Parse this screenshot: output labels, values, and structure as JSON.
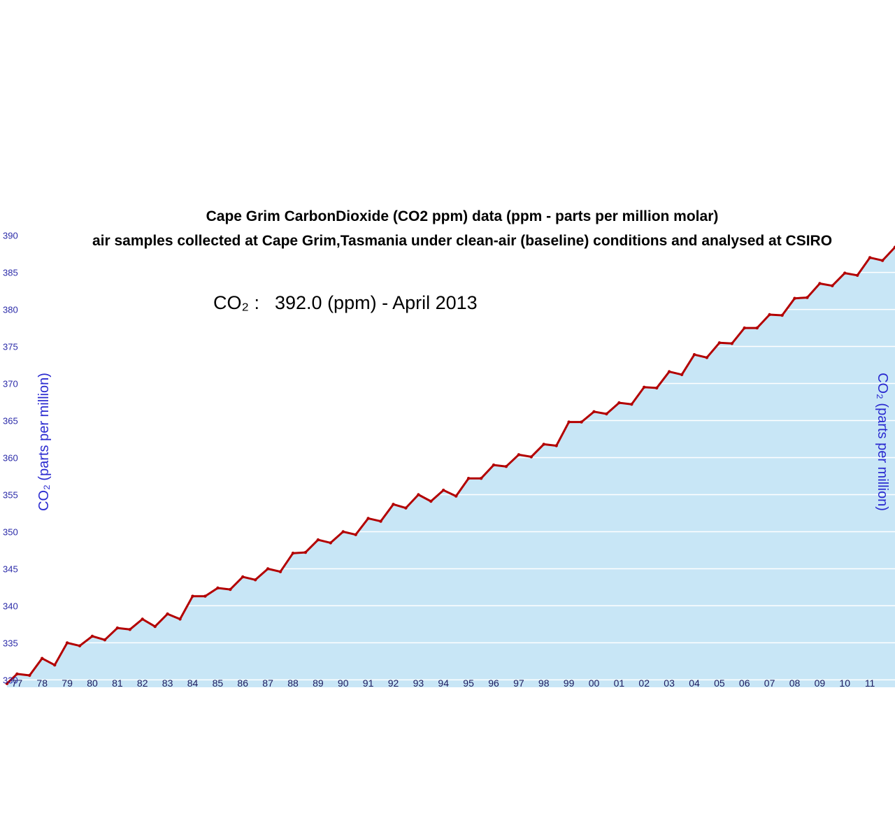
{
  "chart_data": {
    "type": "area",
    "title": "Cape Grim CarbonDioxide (CO2 ppm) data (ppm - parts per million molar)",
    "subtitle": "air samples collected at Cape Grim,Tasmania under clean-air (baseline) conditions and analysed at CSIRO",
    "annotation_label": "CO₂ :",
    "annotation_value": "392.0 (ppm) - April 2013",
    "ylabel_left": "CO₂ (parts per million)",
    "ylabel_right": "CO₂ (parts per million)",
    "ylim": [
      329,
      391
    ],
    "xlim": [
      1976.6,
      2012.0
    ],
    "y_ticks": [
      "330",
      "335",
      "340",
      "345",
      "350",
      "355",
      "360",
      "365",
      "370",
      "375",
      "380",
      "385",
      "390"
    ],
    "x_ticks": [
      {
        "label": "77",
        "year": 1977
      },
      {
        "label": "78",
        "year": 1978
      },
      {
        "label": "79",
        "year": 1979
      },
      {
        "label": "80",
        "year": 1980
      },
      {
        "label": "81",
        "year": 1981
      },
      {
        "label": "82",
        "year": 1982
      },
      {
        "label": "83",
        "year": 1983
      },
      {
        "label": "84",
        "year": 1984
      },
      {
        "label": "85",
        "year": 1985
      },
      {
        "label": "86",
        "year": 1986
      },
      {
        "label": "87",
        "year": 1987
      },
      {
        "label": "88",
        "year": 1988
      },
      {
        "label": "89",
        "year": 1989
      },
      {
        "label": "90",
        "year": 1990
      },
      {
        "label": "91",
        "year": 1991
      },
      {
        "label": "92",
        "year": 1992
      },
      {
        "label": "93",
        "year": 1993
      },
      {
        "label": "94",
        "year": 1994
      },
      {
        "label": "95",
        "year": 1995
      },
      {
        "label": "96",
        "year": 1996
      },
      {
        "label": "97",
        "year": 1997
      },
      {
        "label": "98",
        "year": 1998
      },
      {
        "label": "99",
        "year": 1999
      },
      {
        "label": "00",
        "year": 2000
      },
      {
        "label": "01",
        "year": 2001
      },
      {
        "label": "02",
        "year": 2002
      },
      {
        "label": "03",
        "year": 2003
      },
      {
        "label": "04",
        "year": 2004
      },
      {
        "label": "05",
        "year": 2005
      },
      {
        "label": "06",
        "year": 2006
      },
      {
        "label": "07",
        "year": 2007
      },
      {
        "label": "08",
        "year": 2008
      },
      {
        "label": "09",
        "year": 2009
      },
      {
        "label": "10",
        "year": 2010
      },
      {
        "label": "11",
        "year": 2011
      }
    ],
    "grid": true,
    "legend": "none",
    "colors": {
      "line": "#b30000",
      "fill": "#c8e6f6",
      "grid": "#ffffff",
      "tick": "#2a2aa8"
    },
    "series": [
      {
        "x": [
          1976.6,
          1977.0,
          1977.5,
          1978.0,
          1978.5,
          1979.0,
          1979.5,
          1980.0,
          1980.5,
          1981.0,
          1981.5,
          1982.0,
          1982.5,
          1983.0,
          1983.5,
          1984.0,
          1984.5,
          1985.0,
          1985.5,
          1986.0,
          1986.5,
          1987.0,
          1987.5,
          1988.0,
          1988.5,
          1989.0,
          1989.5,
          1990.0,
          1990.5,
          1991.0,
          1991.5,
          1992.0,
          1992.5,
          1993.0,
          1993.5,
          1994.0,
          1994.5,
          1995.0,
          1995.5,
          1996.0,
          1996.5,
          1997.0,
          1997.5,
          1998.0,
          1998.5,
          1999.0,
          1999.5,
          2000.0,
          2000.5,
          2001.0,
          2001.5,
          2002.0,
          2002.5,
          2003.0,
          2003.5,
          2004.0,
          2004.5,
          2005.0,
          2005.5,
          2006.0,
          2006.5,
          2007.0,
          2007.5,
          2008.0,
          2008.5,
          2009.0,
          2009.5,
          2010.0,
          2010.5,
          2011.0,
          2011.5,
          2012.0
        ],
        "y": [
          329.5,
          330.8,
          330.6,
          332.9,
          332.0,
          335.0,
          334.6,
          335.9,
          335.4,
          337.0,
          336.8,
          338.2,
          337.2,
          338.9,
          338.2,
          341.3,
          341.3,
          342.4,
          342.2,
          343.9,
          343.5,
          345.0,
          344.6,
          347.1,
          347.2,
          348.9,
          348.5,
          350.0,
          349.6,
          351.8,
          351.4,
          353.7,
          353.2,
          355.0,
          354.1,
          355.6,
          354.8,
          357.2,
          357.2,
          359.0,
          358.8,
          360.4,
          360.1,
          361.8,
          361.6,
          364.8,
          364.8,
          366.2,
          365.9,
          367.4,
          367.2,
          369.5,
          369.4,
          371.6,
          371.2,
          373.9,
          373.5,
          375.5,
          375.4,
          377.5,
          377.5,
          379.3,
          379.2,
          381.5,
          381.6,
          383.5,
          383.2,
          384.9,
          384.6,
          387.0,
          386.6,
          388.4
        ]
      }
    ]
  }
}
